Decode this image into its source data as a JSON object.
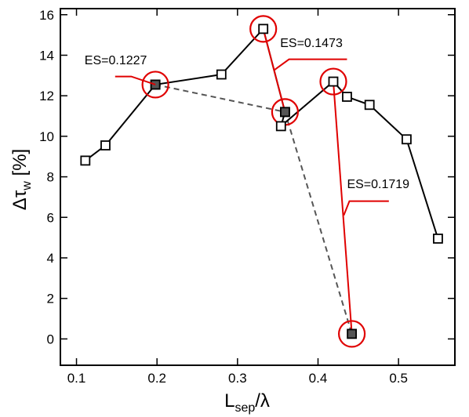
{
  "chart_data": {
    "type": "scatter",
    "xlabel": "L_sep/λ",
    "ylabel": "Δτ_w [%]",
    "xlim": [
      0.08,
      0.57
    ],
    "ylim": [
      -1.3,
      16.3
    ],
    "xticks": [
      0.1,
      0.2,
      0.3,
      0.4,
      0.5
    ],
    "yticks": [
      0,
      2,
      4,
      6,
      8,
      10,
      12,
      14,
      16
    ],
    "grid": false,
    "series": [
      {
        "style": "solid-black-open-square",
        "points": [
          {
            "x": 0.111,
            "y": 8.8
          },
          {
            "x": 0.136,
            "y": 9.55
          },
          {
            "x": 0.198,
            "y": 12.55
          },
          {
            "x": 0.28,
            "y": 13.05
          },
          {
            "x": 0.332,
            "y": 15.3
          },
          {
            "x": 0.359,
            "y": 11.2
          },
          {
            "x": 0.354,
            "y": 10.5
          },
          {
            "x": 0.419,
            "y": 12.7
          },
          {
            "x": 0.436,
            "y": 11.95
          },
          {
            "x": 0.464,
            "y": 11.55
          },
          {
            "x": 0.51,
            "y": 9.85
          },
          {
            "x": 0.549,
            "y": 4.95
          }
        ]
      },
      {
        "style": "dashed-gray-filled-square",
        "points": [
          {
            "x": 0.198,
            "y": 12.55
          },
          {
            "x": 0.359,
            "y": 11.2
          },
          {
            "x": 0.442,
            "y": 0.25
          }
        ]
      }
    ],
    "red_segments": [
      {
        "x1": 0.332,
        "y1": 15.3,
        "x2": 0.359,
        "y2": 11.2
      },
      {
        "x1": 0.419,
        "y1": 12.7,
        "x2": 0.442,
        "y2": 0.25
      }
    ],
    "circles": [
      {
        "x": 0.198,
        "y": 12.55
      },
      {
        "x": 0.332,
        "y": 15.3
      },
      {
        "x": 0.359,
        "y": 11.2
      },
      {
        "x": 0.419,
        "y": 12.7
      },
      {
        "x": 0.442,
        "y": 0.25
      }
    ],
    "annotations": [
      {
        "text": "ES=0.1227",
        "x": 0.11,
        "y": 13.55,
        "line": [
          [
            0.148,
            12.95
          ],
          [
            0.168,
            12.95
          ],
          [
            0.198,
            12.55
          ]
        ]
      },
      {
        "text": "ES=0.1473",
        "x": 0.353,
        "y": 14.4,
        "line": [
          [
            0.436,
            13.8
          ],
          [
            0.364,
            13.8
          ],
          [
            0.345,
            13.25
          ]
        ]
      },
      {
        "text": "ES=0.1719",
        "x": 0.436,
        "y": 7.45,
        "line": [
          [
            0.488,
            6.8
          ],
          [
            0.439,
            6.8
          ],
          [
            0.432,
            6.1
          ]
        ]
      }
    ]
  }
}
